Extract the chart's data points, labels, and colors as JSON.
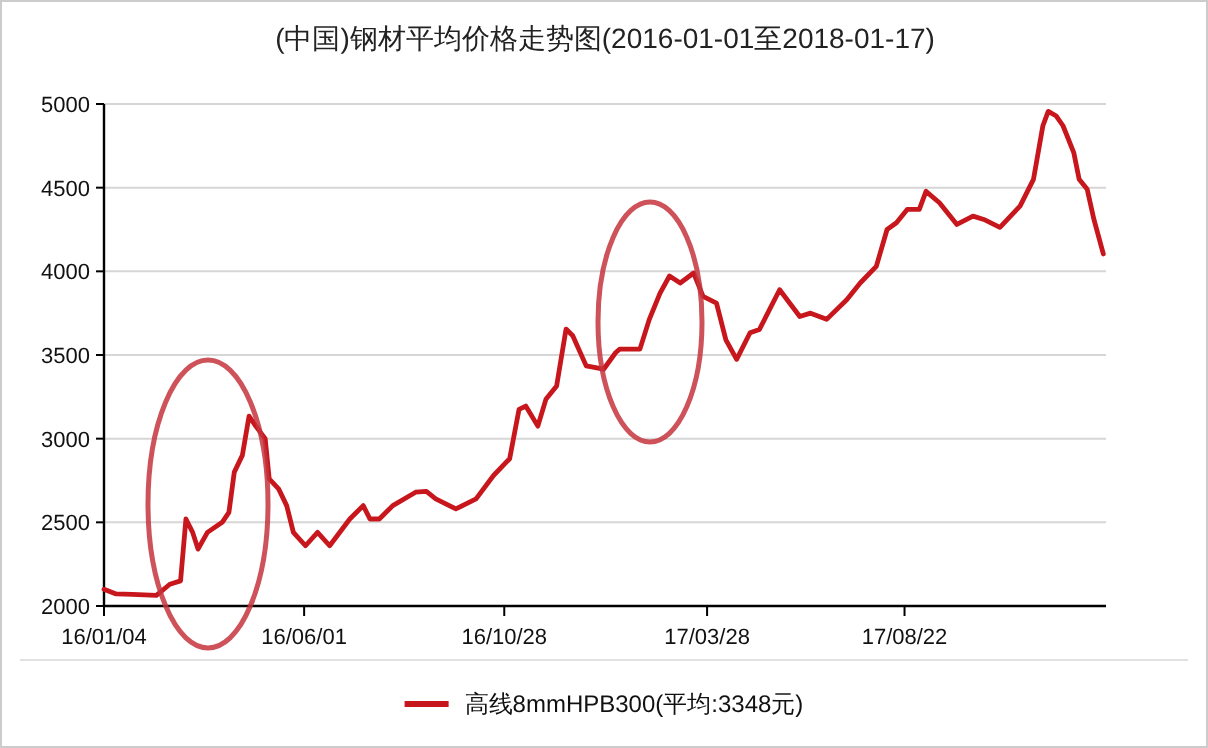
{
  "chart_data": {
    "type": "line",
    "title": "(中国)钢材平均价格走势图(2016-01-01至2018-01-17)",
    "x": [
      "2016-01-04",
      "2016-01-13",
      "2016-01-25",
      "2016-02-12",
      "2016-02-22",
      "2016-03-01",
      "2016-03-05",
      "2016-03-10",
      "2016-03-14",
      "2016-03-21",
      "2016-04-01",
      "2016-04-06",
      "2016-04-10",
      "2016-04-16",
      "2016-04-21",
      "2016-04-26",
      "2016-05-03",
      "2016-05-06",
      "2016-05-13",
      "2016-05-19",
      "2016-05-24",
      "2016-06-02",
      "2016-06-11",
      "2016-06-20",
      "2016-07-05",
      "2016-07-15",
      "2016-07-20",
      "2016-07-27",
      "2016-08-06",
      "2016-08-23",
      "2016-08-31",
      "2016-09-07",
      "2016-09-22",
      "2016-10-07",
      "2016-10-20",
      "2016-11-01",
      "2016-11-08",
      "2016-11-13",
      "2016-11-22",
      "2016-11-28",
      "2016-12-06",
      "2016-12-13",
      "2016-12-18",
      "2016-12-28",
      "2017-01-10",
      "2017-01-19",
      "2017-01-22",
      "2017-02-06",
      "2017-02-13",
      "2017-02-21",
      "2017-02-28",
      "2017-03-08",
      "2017-03-18",
      "2017-03-25",
      "2017-04-04",
      "2017-04-11",
      "2017-04-19",
      "2017-04-29",
      "2017-05-06",
      "2017-05-21",
      "2017-06-05",
      "2017-06-13",
      "2017-06-25",
      "2017-07-10",
      "2017-07-20",
      "2017-08-01",
      "2017-08-09",
      "2017-08-16",
      "2017-08-24",
      "2017-09-02",
      "2017-09-07",
      "2017-09-17",
      "2017-09-30",
      "2017-10-12",
      "2017-10-20",
      "2017-11-01",
      "2017-11-16",
      "2017-11-26",
      "2017-12-03",
      "2017-12-07",
      "2017-12-13",
      "2017-12-18",
      "2017-12-26",
      "2017-12-30",
      "2018-01-05",
      "2018-01-10",
      "2018-01-17"
    ],
    "series": [
      {
        "name": "高线8mmHPB300(平均:3348元)",
        "color": "#c8161d",
        "values": [
          2100,
          2072,
          2070,
          2064,
          2130,
          2150,
          2520,
          2440,
          2340,
          2440,
          2500,
          2560,
          2800,
          2900,
          3135,
          3075,
          3000,
          2760,
          2700,
          2600,
          2440,
          2360,
          2440,
          2360,
          2520,
          2600,
          2520,
          2520,
          2600,
          2680,
          2685,
          2640,
          2580,
          2640,
          2780,
          2880,
          3175,
          3195,
          3075,
          3235,
          3315,
          3655,
          3615,
          3435,
          3415,
          3515,
          3535,
          3535,
          3713,
          3870,
          3972,
          3930,
          3990,
          3850,
          3810,
          3590,
          3474,
          3633,
          3653,
          3890,
          3730,
          3750,
          3713,
          3830,
          3930,
          4030,
          4250,
          4290,
          4370,
          4370,
          4478,
          4410,
          4280,
          4330,
          4310,
          4263,
          4390,
          4550,
          4870,
          4956,
          4928,
          4870,
          4710,
          4550,
          4490,
          4310,
          4104
        ]
      }
    ],
    "xlim": [
      "2016-01-04",
      "2018-01-19"
    ],
    "xticks": [
      {
        "value": "2016-01-04",
        "label": "16/01/04"
      },
      {
        "value": "2016-06-01",
        "label": "16/06/01"
      },
      {
        "value": "2016-10-28",
        "label": "16/10/28"
      },
      {
        "value": "2017-03-28",
        "label": "17/03/28"
      },
      {
        "value": "2017-08-22",
        "label": "17/08/22"
      }
    ],
    "ylim": [
      2000,
      5000
    ],
    "yticks": [
      2000,
      2500,
      3000,
      3500,
      4000,
      4500,
      5000
    ],
    "grid": "y",
    "legend": "bottom"
  }
}
